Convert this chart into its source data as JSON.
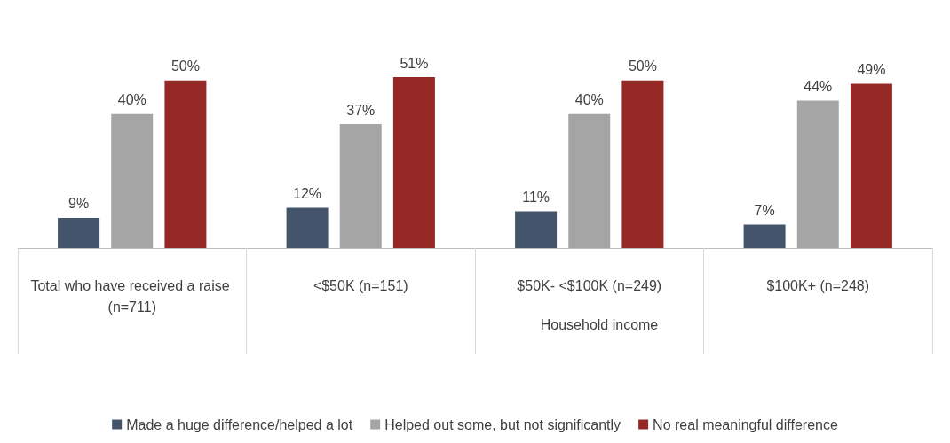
{
  "chart_data": {
    "type": "bar",
    "xlabel": "Household income",
    "categories": [
      "Total who have received a raise (n=711)",
      "<$50K (n=151)",
      "$50K- <$100K (n=249)",
      "$100K+ (n=248)"
    ],
    "series": [
      {
        "name": "Made a huge difference/helped a lot",
        "color": "#44546a",
        "values": [
          9,
          12,
          11,
          7
        ],
        "value_labels": [
          "9%",
          "12%",
          "11%",
          "7%"
        ]
      },
      {
        "name": "Helped out some, but not significantly",
        "color": "#a5a5a5",
        "values": [
          40,
          37,
          40,
          44
        ],
        "value_labels": [
          "40%",
          "37%",
          "40%",
          "44%"
        ]
      },
      {
        "name": "No real meaningful difference",
        "color": "#952725",
        "values": [
          50,
          51,
          50,
          49
        ],
        "value_labels": [
          "50%",
          "51%",
          "50%",
          "49%"
        ]
      }
    ],
    "legend": "bottom",
    "grid": false,
    "tick_labels": "x"
  }
}
